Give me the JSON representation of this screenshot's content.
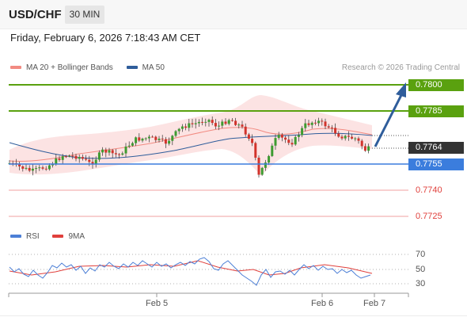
{
  "header": {
    "symbol": "USD/CHF",
    "timeframe": "30 MIN"
  },
  "timestamp": "Friday, February 6, 2026 7:18:43 AM CET",
  "legend": {
    "ma_bollinger": {
      "label": "MA 20 + Bollinger Bands",
      "color": "#f28b82"
    },
    "ma50": {
      "label": "MA 50",
      "color": "#2f5d9b"
    }
  },
  "credit": "Research © 2026 Trading Central",
  "levels": {
    "r2": "0.7800",
    "r1": "0.7785",
    "current": "0.7764",
    "pivot": "0.7755",
    "s1": "0.7740",
    "s2": "0.7725"
  },
  "colors": {
    "resistance": "#5aa10f",
    "pivot": "#3b7ddd",
    "support": "#e0403c",
    "current": "#333333",
    "arrow": "#2f5d9b",
    "bull": "#3e9b30",
    "bear": "#d2332b",
    "rsi": "#4c7fd6",
    "rsi_ma": "#e0403c"
  },
  "rsi_legend": {
    "rsi": "RSI",
    "ma": "9MA"
  },
  "rsi_levels": [
    "70",
    "50",
    "30"
  ],
  "x_axis": [
    "Feb 5",
    "Feb 6",
    "Feb 7"
  ]
}
